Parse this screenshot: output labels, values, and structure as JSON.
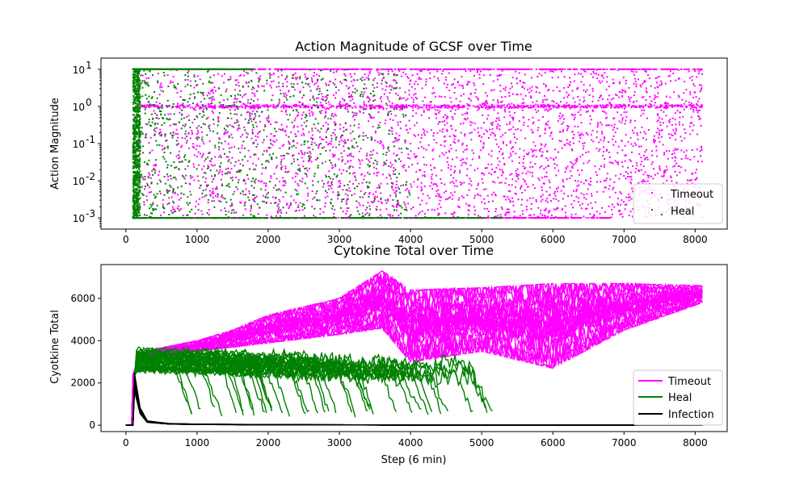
{
  "colors": {
    "timeout": "#ff00ff",
    "heal": "#008000",
    "infection": "#000000"
  },
  "chart_data": [
    {
      "type": "scatter",
      "title": "Action Magnitude of GCSF over Time",
      "xlabel": "",
      "ylabel": "Action Magnitude",
      "yscale": "log",
      "xlim": [
        -350,
        8450
      ],
      "ylim": [
        0.0005,
        20
      ],
      "xticks": [
        0,
        1000,
        2000,
        3000,
        4000,
        5000,
        6000,
        7000,
        8000
      ],
      "xtick_labels": [
        "0",
        "1000",
        "2000",
        "3000",
        "4000",
        "5000",
        "6000",
        "7000",
        "8000"
      ],
      "yticks": [
        0.001,
        0.01,
        0.1,
        1,
        10
      ],
      "ytick_labels": [
        "10",
        "10",
        "10",
        "10",
        "10"
      ],
      "ytick_exponents": [
        "-3",
        "-2",
        "-1",
        "0",
        "1"
      ],
      "legend_position": "lower-right",
      "legend": [
        "Timeout",
        "Heal"
      ],
      "series": [
        {
          "name": "Timeout",
          "marker": "point",
          "x_range": [
            200,
            8100
          ],
          "y_range": [
            0.001,
            10
          ],
          "dense_levels": [
            10,
            1,
            0.001
          ]
        },
        {
          "name": "Heal",
          "marker": "point",
          "x_range": [
            100,
            5300
          ],
          "y_range": [
            0.001,
            10
          ],
          "dense_levels": [
            10,
            0.001
          ],
          "dense_x_band": [
            100,
            200
          ]
        }
      ]
    },
    {
      "type": "line",
      "title": "Cytokine Total over Time",
      "xlabel": "Step (6 min)",
      "ylabel": "Cyotkine Total",
      "xlim": [
        -350,
        8450
      ],
      "ylim": [
        -300,
        7600
      ],
      "xticks": [
        0,
        1000,
        2000,
        3000,
        4000,
        5000,
        6000,
        7000,
        8000
      ],
      "xtick_labels": [
        "0",
        "1000",
        "2000",
        "3000",
        "4000",
        "5000",
        "6000",
        "7000",
        "8000"
      ],
      "yticks": [
        0,
        2000,
        4000,
        6000
      ],
      "ytick_labels": [
        "0",
        "2000",
        "4000",
        "6000"
      ],
      "legend_position": "lower-right",
      "legend": [
        "Timeout",
        "Heal",
        "Infection"
      ],
      "series": [
        {
          "name": "Timeout",
          "x": [
            0,
            100,
            200,
            400,
            700,
            1000,
            1500,
            2000,
            2500,
            3000,
            3600,
            4000,
            5000,
            6000,
            7000,
            8100
          ],
          "band_lower": [
            0,
            2300,
            3000,
            3300,
            3400,
            3500,
            3700,
            3900,
            4100,
            4300,
            4600,
            3000,
            3500,
            2700,
            4500,
            5800
          ],
          "band_upper": [
            0,
            2400,
            3400,
            3600,
            3800,
            4000,
            4500,
            5200,
            5600,
            6000,
            7300,
            6400,
            6500,
            6700,
            6700,
            6600
          ]
        },
        {
          "name": "Heal",
          "x": [
            0,
            100,
            140,
            300,
            600,
            900,
            1500,
            2000,
            2500,
            3000,
            3500,
            4000,
            4500,
            5000,
            5250
          ],
          "band_lower": [
            0,
            2000,
            3000,
            2600,
            2400,
            500,
            500,
            500,
            500,
            500,
            500,
            500,
            800,
            1500,
            1800
          ],
          "band_upper": [
            0,
            2500,
            3900,
            3800,
            3700,
            3700,
            3700,
            3600,
            3500,
            3400,
            3300,
            3100,
            3000,
            2600,
            2000
          ]
        },
        {
          "name": "Infection",
          "x": [
            0,
            100,
            120,
            140,
            200,
            300,
            600,
            1000,
            2000,
            4000,
            6000,
            8100
          ],
          "values": [
            0,
            0,
            2400,
            2000,
            800,
            200,
            80,
            50,
            30,
            10,
            5,
            5
          ]
        }
      ]
    }
  ]
}
